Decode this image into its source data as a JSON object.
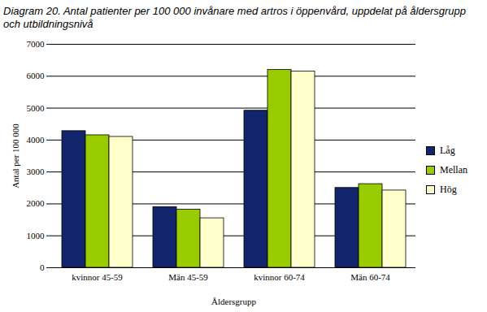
{
  "chart_data": {
    "type": "bar",
    "title": "Diagram 20. Antal patienter per 100 000 invånare med artros i öppenvård, uppdelat på åldersgrupp och utbildningsnivå",
    "categories": [
      "kvinnor 45-59",
      "Män 45-59",
      "kvinnor 60-74",
      "Män 60-74"
    ],
    "series": [
      {
        "name": "Låg",
        "color": "#12246b",
        "values": [
          4280,
          1900,
          4920,
          2500
        ]
      },
      {
        "name": "Mellan",
        "color": "#99cc00",
        "values": [
          4150,
          1820,
          6200,
          2620
        ]
      },
      {
        "name": "Hög",
        "color": "#ffffcc",
        "values": [
          4100,
          1550,
          6150,
          2420
        ]
      }
    ],
    "x_label": "Åldersgrupp",
    "y_label": "Antal per 100 000",
    "ylim": [
      0,
      7000
    ],
    "yticks": [
      0,
      1000,
      2000,
      3000,
      4000,
      5000,
      6000,
      7000
    ],
    "grid": true,
    "legend": "right"
  }
}
